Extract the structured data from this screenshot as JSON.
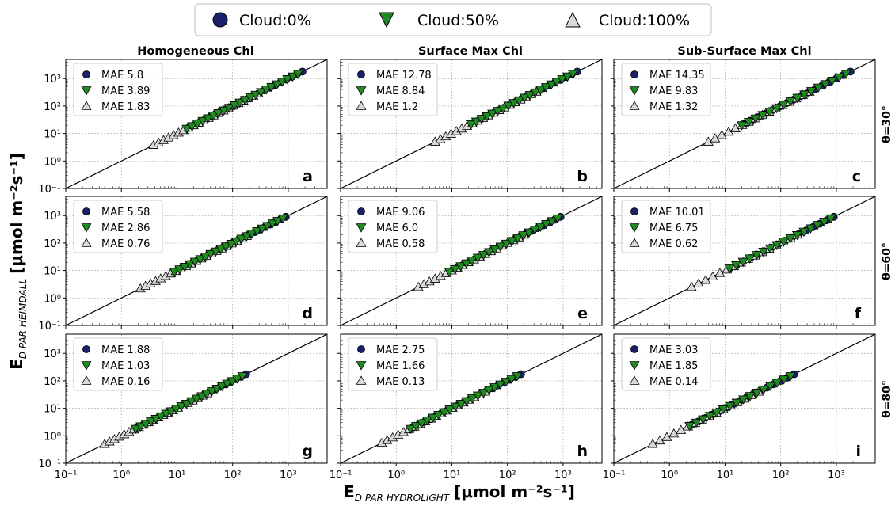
{
  "legend": {
    "items": [
      {
        "label": "Cloud:0%",
        "marker": "circle",
        "color": "#1a1f6e"
      },
      {
        "label": "Cloud:50%",
        "marker": "triangle-down",
        "color": "#1f8a1f"
      },
      {
        "label": "Cloud:100%",
        "marker": "triangle-up",
        "color": "#d9d9d9"
      }
    ]
  },
  "columns": [
    "Homogeneous Chl",
    "Surface Max Chl",
    "Sub-Surface Max Chl"
  ],
  "rows": [
    "θ=30°",
    "θ=60°",
    "θ=80°"
  ],
  "axes": {
    "xlabel": {
      "main": "E",
      "sub": "D PAR HYDROLIGHT",
      "unit": "[μmol m⁻²s⁻¹]"
    },
    "ylabel": {
      "main": "E",
      "sub": "D PAR HEIMDALL",
      "unit": "[μmol m⁻²s⁻¹]"
    },
    "x_ticks": [
      "10⁻¹",
      "10⁰",
      "10¹",
      "10²",
      "10³"
    ],
    "y_ticks": [
      "10⁻¹",
      "10⁰",
      "10¹",
      "10²",
      "10³"
    ]
  },
  "chart_data": [
    {
      "type": "scatter",
      "panel": "a",
      "column": "Homogeneous Chl",
      "row": "θ=30°",
      "xscale": "log",
      "yscale": "log",
      "xlim": [
        0.1,
        5000
      ],
      "ylim": [
        0.1,
        5000
      ],
      "grid": true,
      "legend_position": "upper-left",
      "series": [
        {
          "name": "Cloud:0%",
          "mae_label": "MAE 5.8",
          "x_range": [
            16,
            1800
          ],
          "n": 22
        },
        {
          "name": "Cloud:50%",
          "mae_label": "MAE 3.89",
          "x_range": [
            15,
            1500
          ],
          "n": 22
        },
        {
          "name": "Cloud:100%",
          "mae_label": "MAE 1.83",
          "x_range": [
            3.8,
            290
          ],
          "n": 22
        }
      ]
    },
    {
      "type": "scatter",
      "panel": "b",
      "column": "Surface Max Chl",
      "row": "θ=30°",
      "xscale": "log",
      "yscale": "log",
      "xlim": [
        0.1,
        5000
      ],
      "ylim": [
        0.1,
        5000
      ],
      "grid": true,
      "legend_position": "upper-left",
      "series": [
        {
          "name": "Cloud:0%",
          "mae_label": "MAE 12.78",
          "x_range": [
            22,
            1800
          ],
          "n": 20
        },
        {
          "name": "Cloud:50%",
          "mae_label": "MAE 8.84",
          "x_range": [
            22,
            1500
          ],
          "n": 20
        },
        {
          "name": "Cloud:100%",
          "mae_label": "MAE 1.2",
          "x_range": [
            5,
            330
          ],
          "n": 20
        }
      ]
    },
    {
      "type": "scatter",
      "panel": "c",
      "column": "Sub-Surface Max Chl",
      "row": "θ=30°",
      "xscale": "log",
      "yscale": "log",
      "xlim": [
        0.1,
        5000
      ],
      "ylim": [
        0.1,
        5000
      ],
      "grid": true,
      "legend_position": "upper-left",
      "series": [
        {
          "name": "Cloud:0%",
          "mae_label": "MAE 14.35",
          "x_range": [
            22,
            1800
          ],
          "n": 16
        },
        {
          "name": "Cloud:50%",
          "mae_label": "MAE 9.83",
          "x_range": [
            20,
            1500
          ],
          "n": 16
        },
        {
          "name": "Cloud:100%",
          "mae_label": "MAE 1.32",
          "x_range": [
            5,
            330
          ],
          "n": 16
        }
      ]
    },
    {
      "type": "scatter",
      "panel": "d",
      "column": "Homogeneous Chl",
      "row": "θ=60°",
      "xscale": "log",
      "yscale": "log",
      "xlim": [
        0.1,
        5000
      ],
      "ylim": [
        0.1,
        5000
      ],
      "grid": true,
      "legend_position": "upper-left",
      "series": [
        {
          "name": "Cloud:0%",
          "mae_label": "MAE 5.58",
          "x_range": [
            10,
            900
          ],
          "n": 22
        },
        {
          "name": "Cloud:50%",
          "mae_label": "MAE 2.86",
          "x_range": [
            9,
            800
          ],
          "n": 22
        },
        {
          "name": "Cloud:100%",
          "mae_label": "MAE 0.76",
          "x_range": [
            2.2,
            180
          ],
          "n": 22
        }
      ]
    },
    {
      "type": "scatter",
      "panel": "e",
      "column": "Surface Max Chl",
      "row": "θ=60°",
      "xscale": "log",
      "yscale": "log",
      "xlim": [
        0.1,
        5000
      ],
      "ylim": [
        0.1,
        5000
      ],
      "grid": true,
      "legend_position": "upper-left",
      "series": [
        {
          "name": "Cloud:0%",
          "mae_label": "MAE 9.06",
          "x_range": [
            10,
            900
          ],
          "n": 20
        },
        {
          "name": "Cloud:50%",
          "mae_label": "MAE 6.0",
          "x_range": [
            9,
            800
          ],
          "n": 20
        },
        {
          "name": "Cloud:100%",
          "mae_label": "MAE 0.58",
          "x_range": [
            2.5,
            200
          ],
          "n": 20
        }
      ]
    },
    {
      "type": "scatter",
      "panel": "f",
      "column": "Sub-Surface Max Chl",
      "row": "θ=60°",
      "xscale": "log",
      "yscale": "log",
      "xlim": [
        0.1,
        5000
      ],
      "ylim": [
        0.1,
        5000
      ],
      "grid": true,
      "legend_position": "upper-left",
      "series": [
        {
          "name": "Cloud:0%",
          "mae_label": "MAE 10.01",
          "x_range": [
            12,
            900
          ],
          "n": 16
        },
        {
          "name": "Cloud:50%",
          "mae_label": "MAE 6.75",
          "x_range": [
            12,
            800
          ],
          "n": 16
        },
        {
          "name": "Cloud:100%",
          "mae_label": "MAE 0.62",
          "x_range": [
            2.5,
            200
          ],
          "n": 16
        }
      ]
    },
    {
      "type": "scatter",
      "panel": "g",
      "column": "Homogeneous Chl",
      "row": "θ=80°",
      "xscale": "log",
      "yscale": "log",
      "xlim": [
        0.1,
        5000
      ],
      "ylim": [
        0.1,
        5000
      ],
      "grid": true,
      "legend_position": "upper-left",
      "series": [
        {
          "name": "Cloud:0%",
          "mae_label": "MAE 1.88",
          "x_range": [
            2,
            175
          ],
          "n": 22
        },
        {
          "name": "Cloud:50%",
          "mae_label": "MAE 1.03",
          "x_range": [
            1.8,
            150
          ],
          "n": 22
        },
        {
          "name": "Cloud:100%",
          "mae_label": "MAE 0.16",
          "x_range": [
            0.5,
            35
          ],
          "n": 22
        }
      ]
    },
    {
      "type": "scatter",
      "panel": "h",
      "column": "Surface Max Chl",
      "row": "θ=80°",
      "xscale": "log",
      "yscale": "log",
      "xlim": [
        0.1,
        5000
      ],
      "ylim": [
        0.1,
        5000
      ],
      "grid": true,
      "legend_position": "upper-left",
      "series": [
        {
          "name": "Cloud:0%",
          "mae_label": "MAE 2.75",
          "x_range": [
            2,
            175
          ],
          "n": 20
        },
        {
          "name": "Cloud:50%",
          "mae_label": "MAE 1.66",
          "x_range": [
            1.8,
            150
          ],
          "n": 20
        },
        {
          "name": "Cloud:100%",
          "mae_label": "MAE 0.13",
          "x_range": [
            0.55,
            40
          ],
          "n": 20
        }
      ]
    },
    {
      "type": "scatter",
      "panel": "i",
      "column": "Sub-Surface Max Chl",
      "row": "θ=80°",
      "xscale": "log",
      "yscale": "log",
      "xlim": [
        0.1,
        5000
      ],
      "ylim": [
        0.1,
        5000
      ],
      "grid": true,
      "legend_position": "upper-left",
      "series": [
        {
          "name": "Cloud:0%",
          "mae_label": "MAE 3.03",
          "x_range": [
            2.5,
            175
          ],
          "n": 16
        },
        {
          "name": "Cloud:50%",
          "mae_label": "MAE 1.85",
          "x_range": [
            2.3,
            150
          ],
          "n": 16
        },
        {
          "name": "Cloud:100%",
          "mae_label": "MAE 0.14",
          "x_range": [
            0.5,
            40
          ],
          "n": 16
        }
      ]
    }
  ]
}
